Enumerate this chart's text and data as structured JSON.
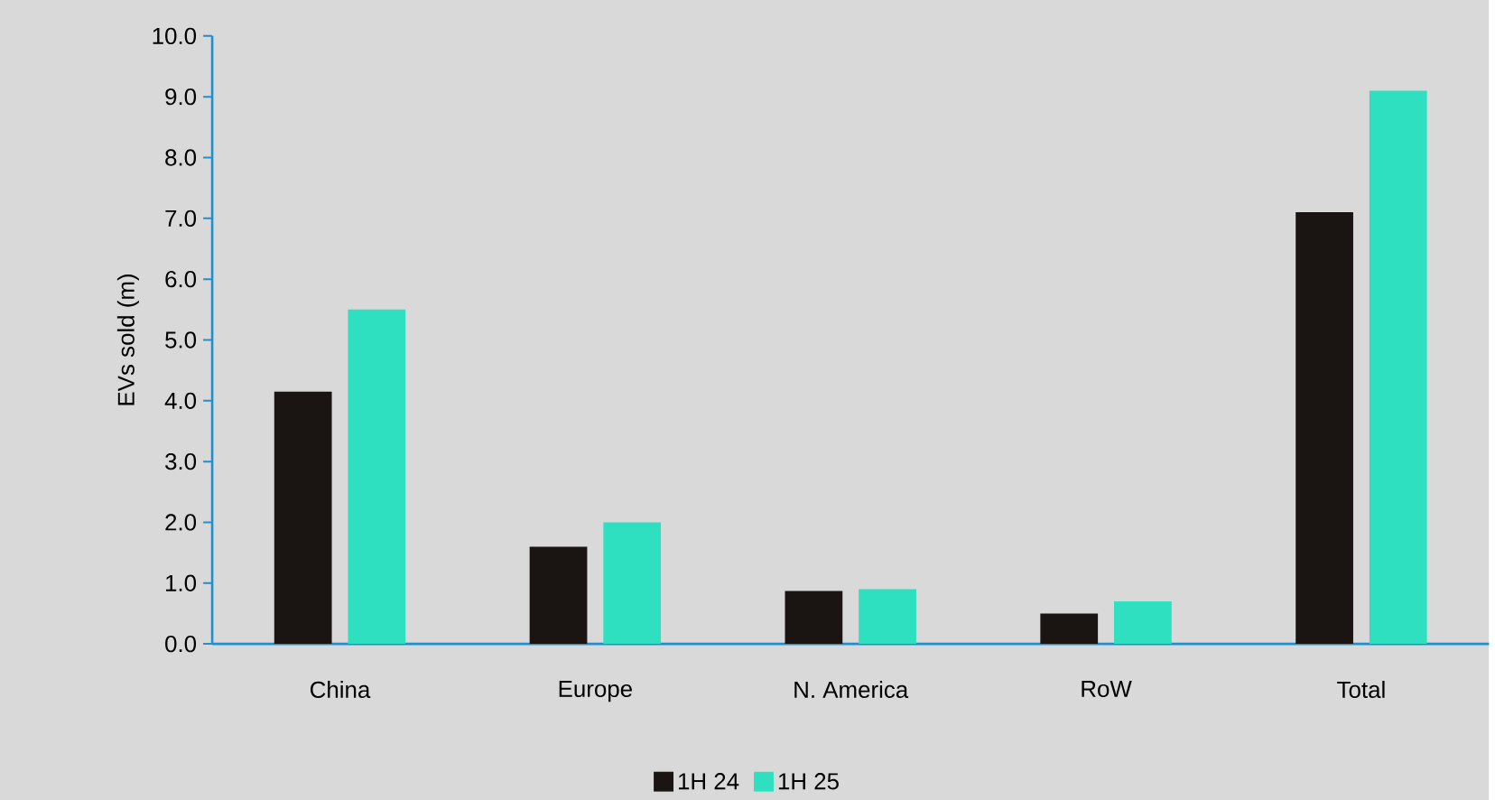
{
  "chart_data": {
    "type": "bar",
    "ylabel": "EVs sold (m)",
    "categories": [
      "China",
      "Europe",
      "N. America",
      "RoW",
      "Total"
    ],
    "series": [
      {
        "name": "1H 24",
        "color": "#1a1512",
        "values": [
          4.15,
          1.6,
          0.87,
          0.5,
          7.1
        ]
      },
      {
        "name": "1H 25",
        "color": "#2ee0c0",
        "values": [
          5.5,
          2.0,
          0.9,
          0.7,
          9.1
        ]
      }
    ],
    "ylim": [
      0,
      10
    ],
    "yticks": [
      {
        "value": 0,
        "label": "0.0"
      },
      {
        "value": 1,
        "label": "1.0"
      },
      {
        "value": 2,
        "label": "2.0"
      },
      {
        "value": 3,
        "label": "3.0"
      },
      {
        "value": 4,
        "label": "4.0"
      },
      {
        "value": 5,
        "label": "5.0"
      },
      {
        "value": 6,
        "label": "6.0"
      },
      {
        "value": 7,
        "label": "7.0"
      },
      {
        "value": 8,
        "label": "8.0"
      },
      {
        "value": 9,
        "label": "9.0"
      },
      {
        "value": 10,
        "label": "10.0"
      }
    ],
    "grid": false,
    "legend": "bottom"
  }
}
